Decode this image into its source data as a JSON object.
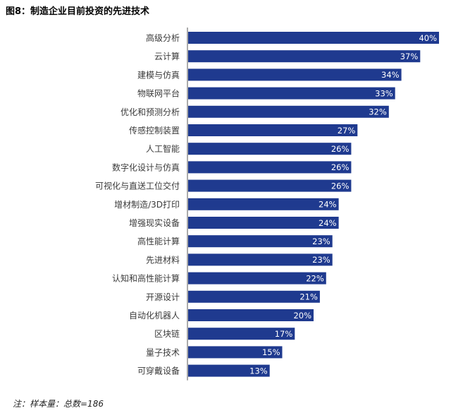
{
  "title": "图8：制造企业目前投资的先进技术",
  "note": "注：样本量：总数=186",
  "colors": {
    "bar": "#1f3a8f",
    "axis": "#555555",
    "label": "#3a3a3a",
    "value_text": "#ffffff"
  },
  "chart_data": {
    "type": "bar",
    "orientation": "horizontal",
    "categories": [
      "高级分析",
      "云计算",
      "建模与仿真",
      "物联网平台",
      "优化和预测分析",
      "传感控制装置",
      "人工智能",
      "数字化设计与仿真",
      "可视化与直送工位交付",
      "增材制造/3D打印",
      "增强现实设备",
      "高性能计算",
      "先进材料",
      "认知和高性能计算",
      "开源设计",
      "自动化机器人",
      "区块链",
      "量子技术",
      "可穿戴设备"
    ],
    "values": [
      40,
      37,
      34,
      33,
      32,
      27,
      26,
      26,
      26,
      24,
      24,
      23,
      23,
      22,
      21,
      20,
      17,
      15,
      13
    ],
    "value_labels": [
      "40%",
      "37%",
      "34%",
      "33%",
      "32%",
      "27%",
      "26%",
      "26%",
      "26%",
      "24%",
      "24%",
      "23%",
      "23%",
      "22%",
      "21%",
      "20%",
      "17%",
      "15%",
      "13%"
    ],
    "unit": "%",
    "xlim": [
      0,
      40
    ],
    "grid": false,
    "legend": "none"
  }
}
